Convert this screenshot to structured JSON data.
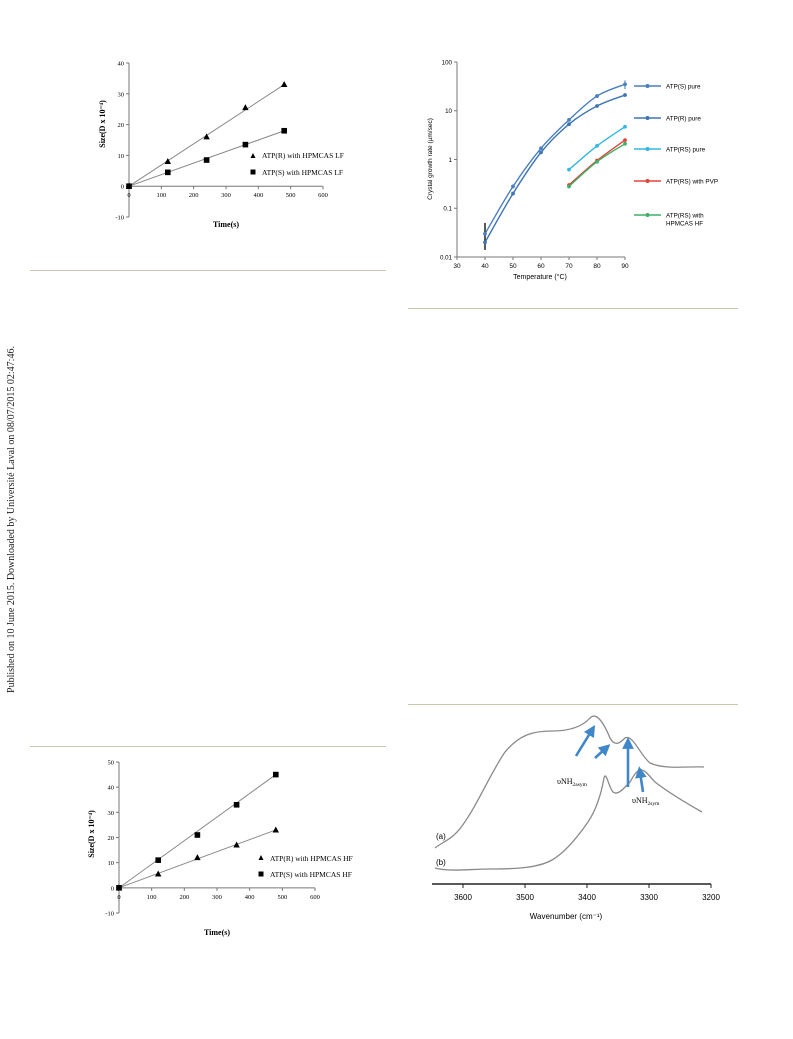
{
  "watermark": "Published on 10 June 2015. Downloaded by Université Laval on 08/07/2015 02:47:46.",
  "chart_data": [
    {
      "type": "scatter",
      "xlabel": "Time(s)",
      "ylabel": "Size(D x 10⁻⁴)",
      "xlim": [
        0,
        600
      ],
      "ylim": [
        -10,
        40
      ],
      "xticks": [
        "0",
        "100",
        "200",
        "300",
        "400",
        "500",
        "600"
      ],
      "yticks": [
        "-10",
        "0",
        "10",
        "20",
        "30",
        "40"
      ],
      "legend_position": "right",
      "series": [
        {
          "name": "ATP(R) with HPMCAS LF",
          "marker": "triangle",
          "x": [
            0,
            120,
            240,
            360,
            480
          ],
          "y": [
            0,
            8,
            16,
            25.5,
            33
          ]
        },
        {
          "name": "ATP(S) with HPMCAS LF",
          "marker": "square",
          "x": [
            0,
            120,
            240,
            360,
            480
          ],
          "y": [
            0,
            4.5,
            8.5,
            13.5,
            18
          ]
        }
      ]
    },
    {
      "type": "line",
      "xlabel": "Temperature (°C)",
      "ylabel": "Crystal growth rate (µm/sec)",
      "scale_y": "log",
      "xlim": [
        30,
        90
      ],
      "ylim": [
        0.01,
        100
      ],
      "xticks": [
        "30",
        "40",
        "50",
        "60",
        "70",
        "80",
        "90"
      ],
      "yticks": [
        "0.01",
        "0.1",
        "1",
        "10",
        "100"
      ],
      "legend_position": "right",
      "series": [
        {
          "name": "ATP(S) pure",
          "color": "#4a7fc0",
          "x": [
            40,
            50,
            60,
            70,
            80,
            90
          ],
          "y": [
            0.03,
            0.28,
            1.7,
            6.5,
            20,
            35
          ]
        },
        {
          "name": "ATP(R) pure",
          "color": "#3f74b6",
          "x": [
            40,
            50,
            60,
            70,
            80,
            90
          ],
          "y": [
            0.02,
            0.2,
            1.4,
            5.3,
            12.5,
            21
          ]
        },
        {
          "name": "ATP(RS) pure",
          "color": "#33b7e6",
          "x": [
            70,
            80,
            90
          ],
          "y": [
            0.62,
            1.9,
            4.7
          ]
        },
        {
          "name": "ATP(RS) with PVP",
          "color": "#e0463a",
          "x": [
            70,
            80,
            90
          ],
          "y": [
            0.3,
            0.95,
            2.5
          ]
        },
        {
          "name": "ATP(RS) with HPMCAS HF",
          "color": "#3db067",
          "x": [
            70,
            80,
            90
          ],
          "y": [
            0.28,
            0.9,
            2.1
          ]
        }
      ]
    },
    {
      "type": "scatter",
      "xlabel": "Time(s)",
      "ylabel": "Size(D x 10⁻⁴)",
      "xlim": [
        0,
        600
      ],
      "ylim": [
        -10,
        50
      ],
      "xticks": [
        "0",
        "100",
        "200",
        "300",
        "400",
        "500",
        "600"
      ],
      "yticks": [
        "-10",
        "0",
        "10",
        "20",
        "30",
        "40",
        "50"
      ],
      "legend_position": "right",
      "series": [
        {
          "name": "ATP(R) with HPMCAS HF",
          "marker": "triangle",
          "x": [
            0,
            120,
            240,
            360,
            480
          ],
          "y": [
            0,
            5.5,
            12,
            17,
            23
          ]
        },
        {
          "name": "ATP(S) with HPMCAS HF",
          "marker": "square",
          "x": [
            0,
            120,
            240,
            360,
            480
          ],
          "y": [
            0,
            11,
            21,
            33,
            45
          ]
        }
      ]
    },
    {
      "type": "line",
      "xlabel": "Wavenumber (cm⁻¹)",
      "xlim": [
        3650,
        3200
      ],
      "xticks": [
        "3600",
        "3500",
        "3400",
        "3300",
        "3200"
      ],
      "trace_labels": [
        "(a)",
        "(b)"
      ],
      "annotations": [
        {
          "base": "υNH",
          "sub": "2asym"
        },
        {
          "base": "υNH",
          "sub": "2sym"
        }
      ],
      "arrow_color": "#3f87c7"
    }
  ]
}
